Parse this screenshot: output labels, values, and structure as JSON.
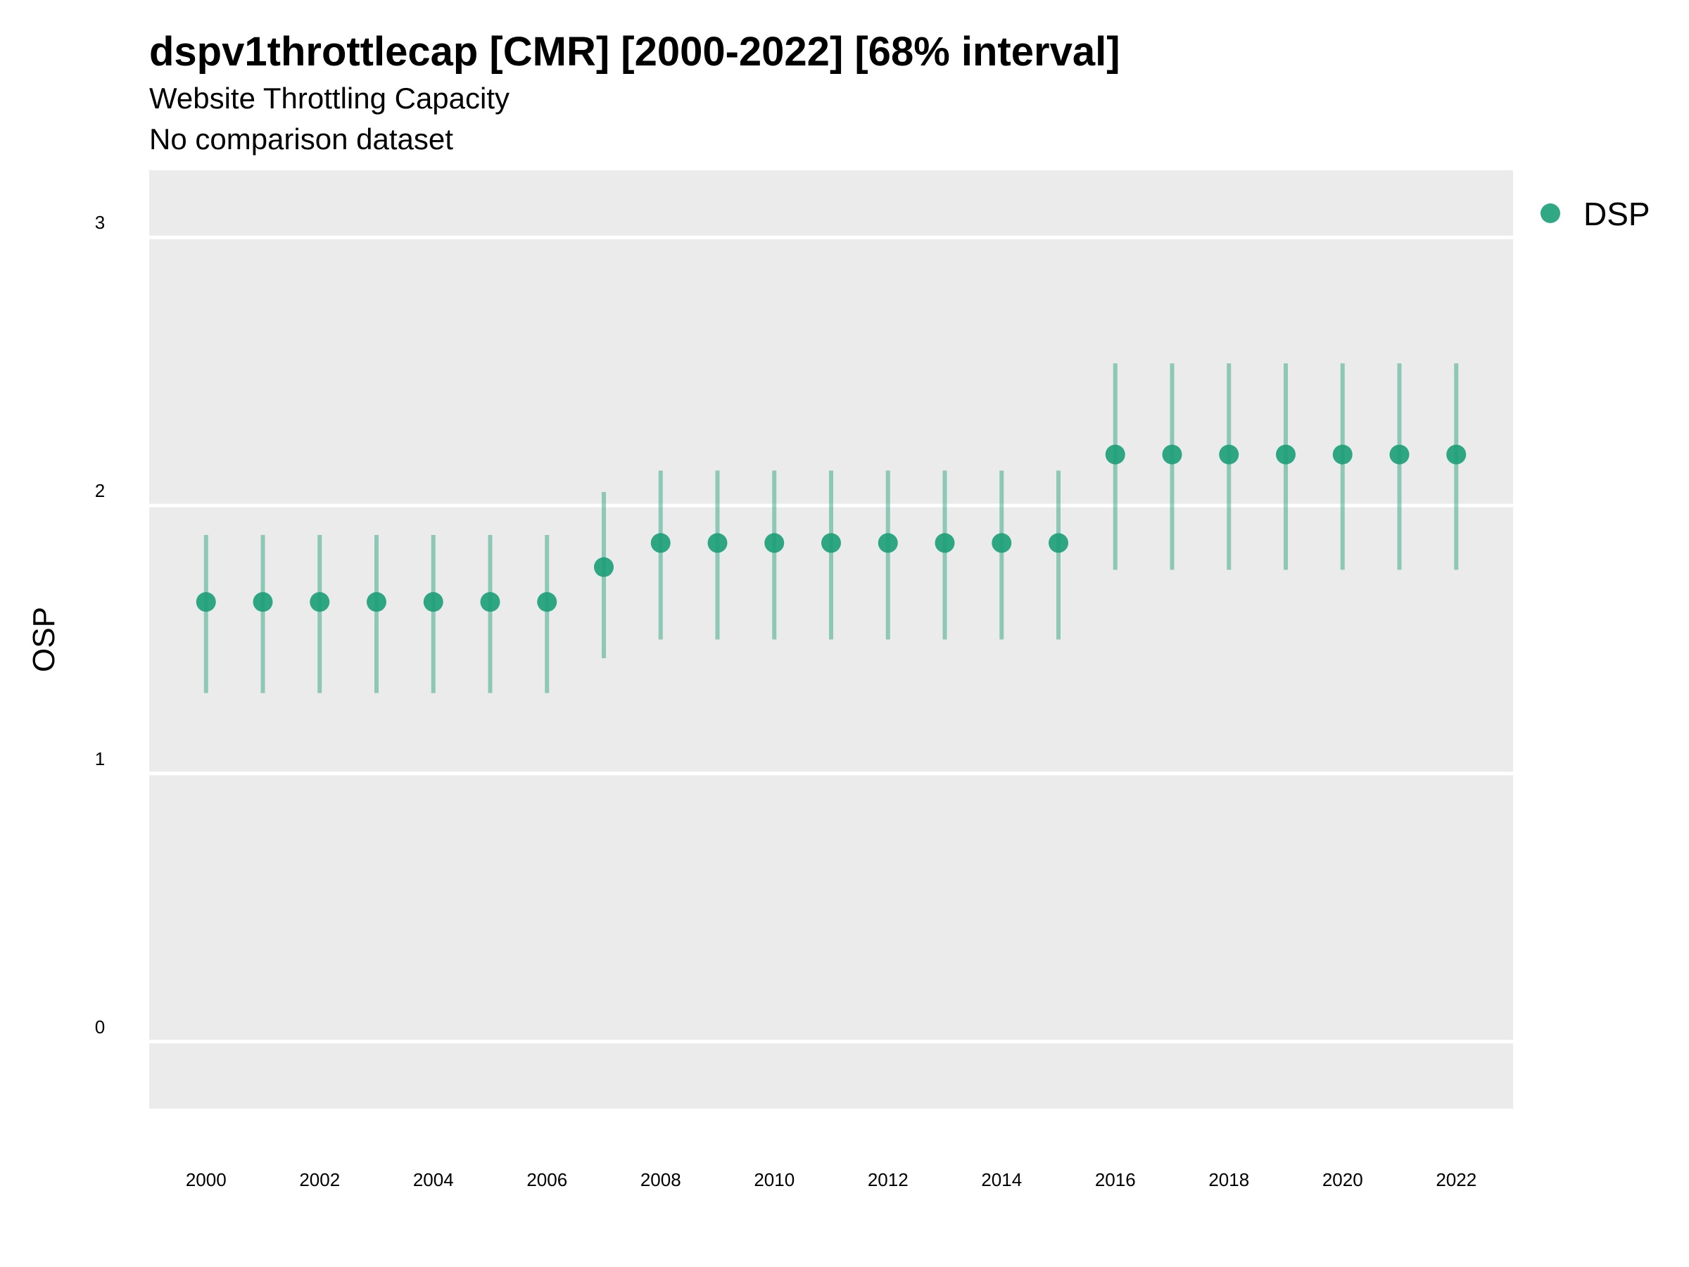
{
  "chart_data": {
    "type": "scatter",
    "title": "dspv1throttlecap [CMR] [2000-2022] [68% interval]",
    "subtitle": [
      "Website Throttling Capacity",
      "No comparison dataset"
    ],
    "ylabel": "OSP",
    "xlabel": "",
    "ylim": [
      -0.25,
      3.25
    ],
    "yticks": [
      0,
      1,
      2,
      3
    ],
    "xticks": [
      2000,
      2002,
      2004,
      2006,
      2008,
      2010,
      2012,
      2014,
      2016,
      2018,
      2020,
      2022
    ],
    "grid": true,
    "legend_position": "right",
    "series": [
      {
        "name": "DSP",
        "color": "#1b9e77",
        "x": [
          2000,
          2001,
          2002,
          2003,
          2004,
          2005,
          2006,
          2007,
          2008,
          2009,
          2010,
          2011,
          2012,
          2013,
          2014,
          2015,
          2016,
          2017,
          2018,
          2019,
          2020,
          2021,
          2022
        ],
        "y": [
          1.64,
          1.64,
          1.64,
          1.64,
          1.64,
          1.64,
          1.64,
          1.77,
          1.86,
          1.86,
          1.86,
          1.86,
          1.86,
          1.86,
          1.86,
          1.86,
          2.19,
          2.19,
          2.19,
          2.19,
          2.19,
          2.19,
          2.19
        ],
        "lower": [
          1.3,
          1.3,
          1.3,
          1.3,
          1.3,
          1.3,
          1.3,
          1.43,
          1.5,
          1.5,
          1.5,
          1.5,
          1.5,
          1.5,
          1.5,
          1.5,
          1.76,
          1.76,
          1.76,
          1.76,
          1.76,
          1.76,
          1.76
        ],
        "upper": [
          1.89,
          1.89,
          1.89,
          1.89,
          1.89,
          1.89,
          1.89,
          2.05,
          2.13,
          2.13,
          2.13,
          2.13,
          2.13,
          2.13,
          2.13,
          2.13,
          2.53,
          2.53,
          2.53,
          2.53,
          2.53,
          2.53,
          2.53
        ]
      }
    ]
  }
}
